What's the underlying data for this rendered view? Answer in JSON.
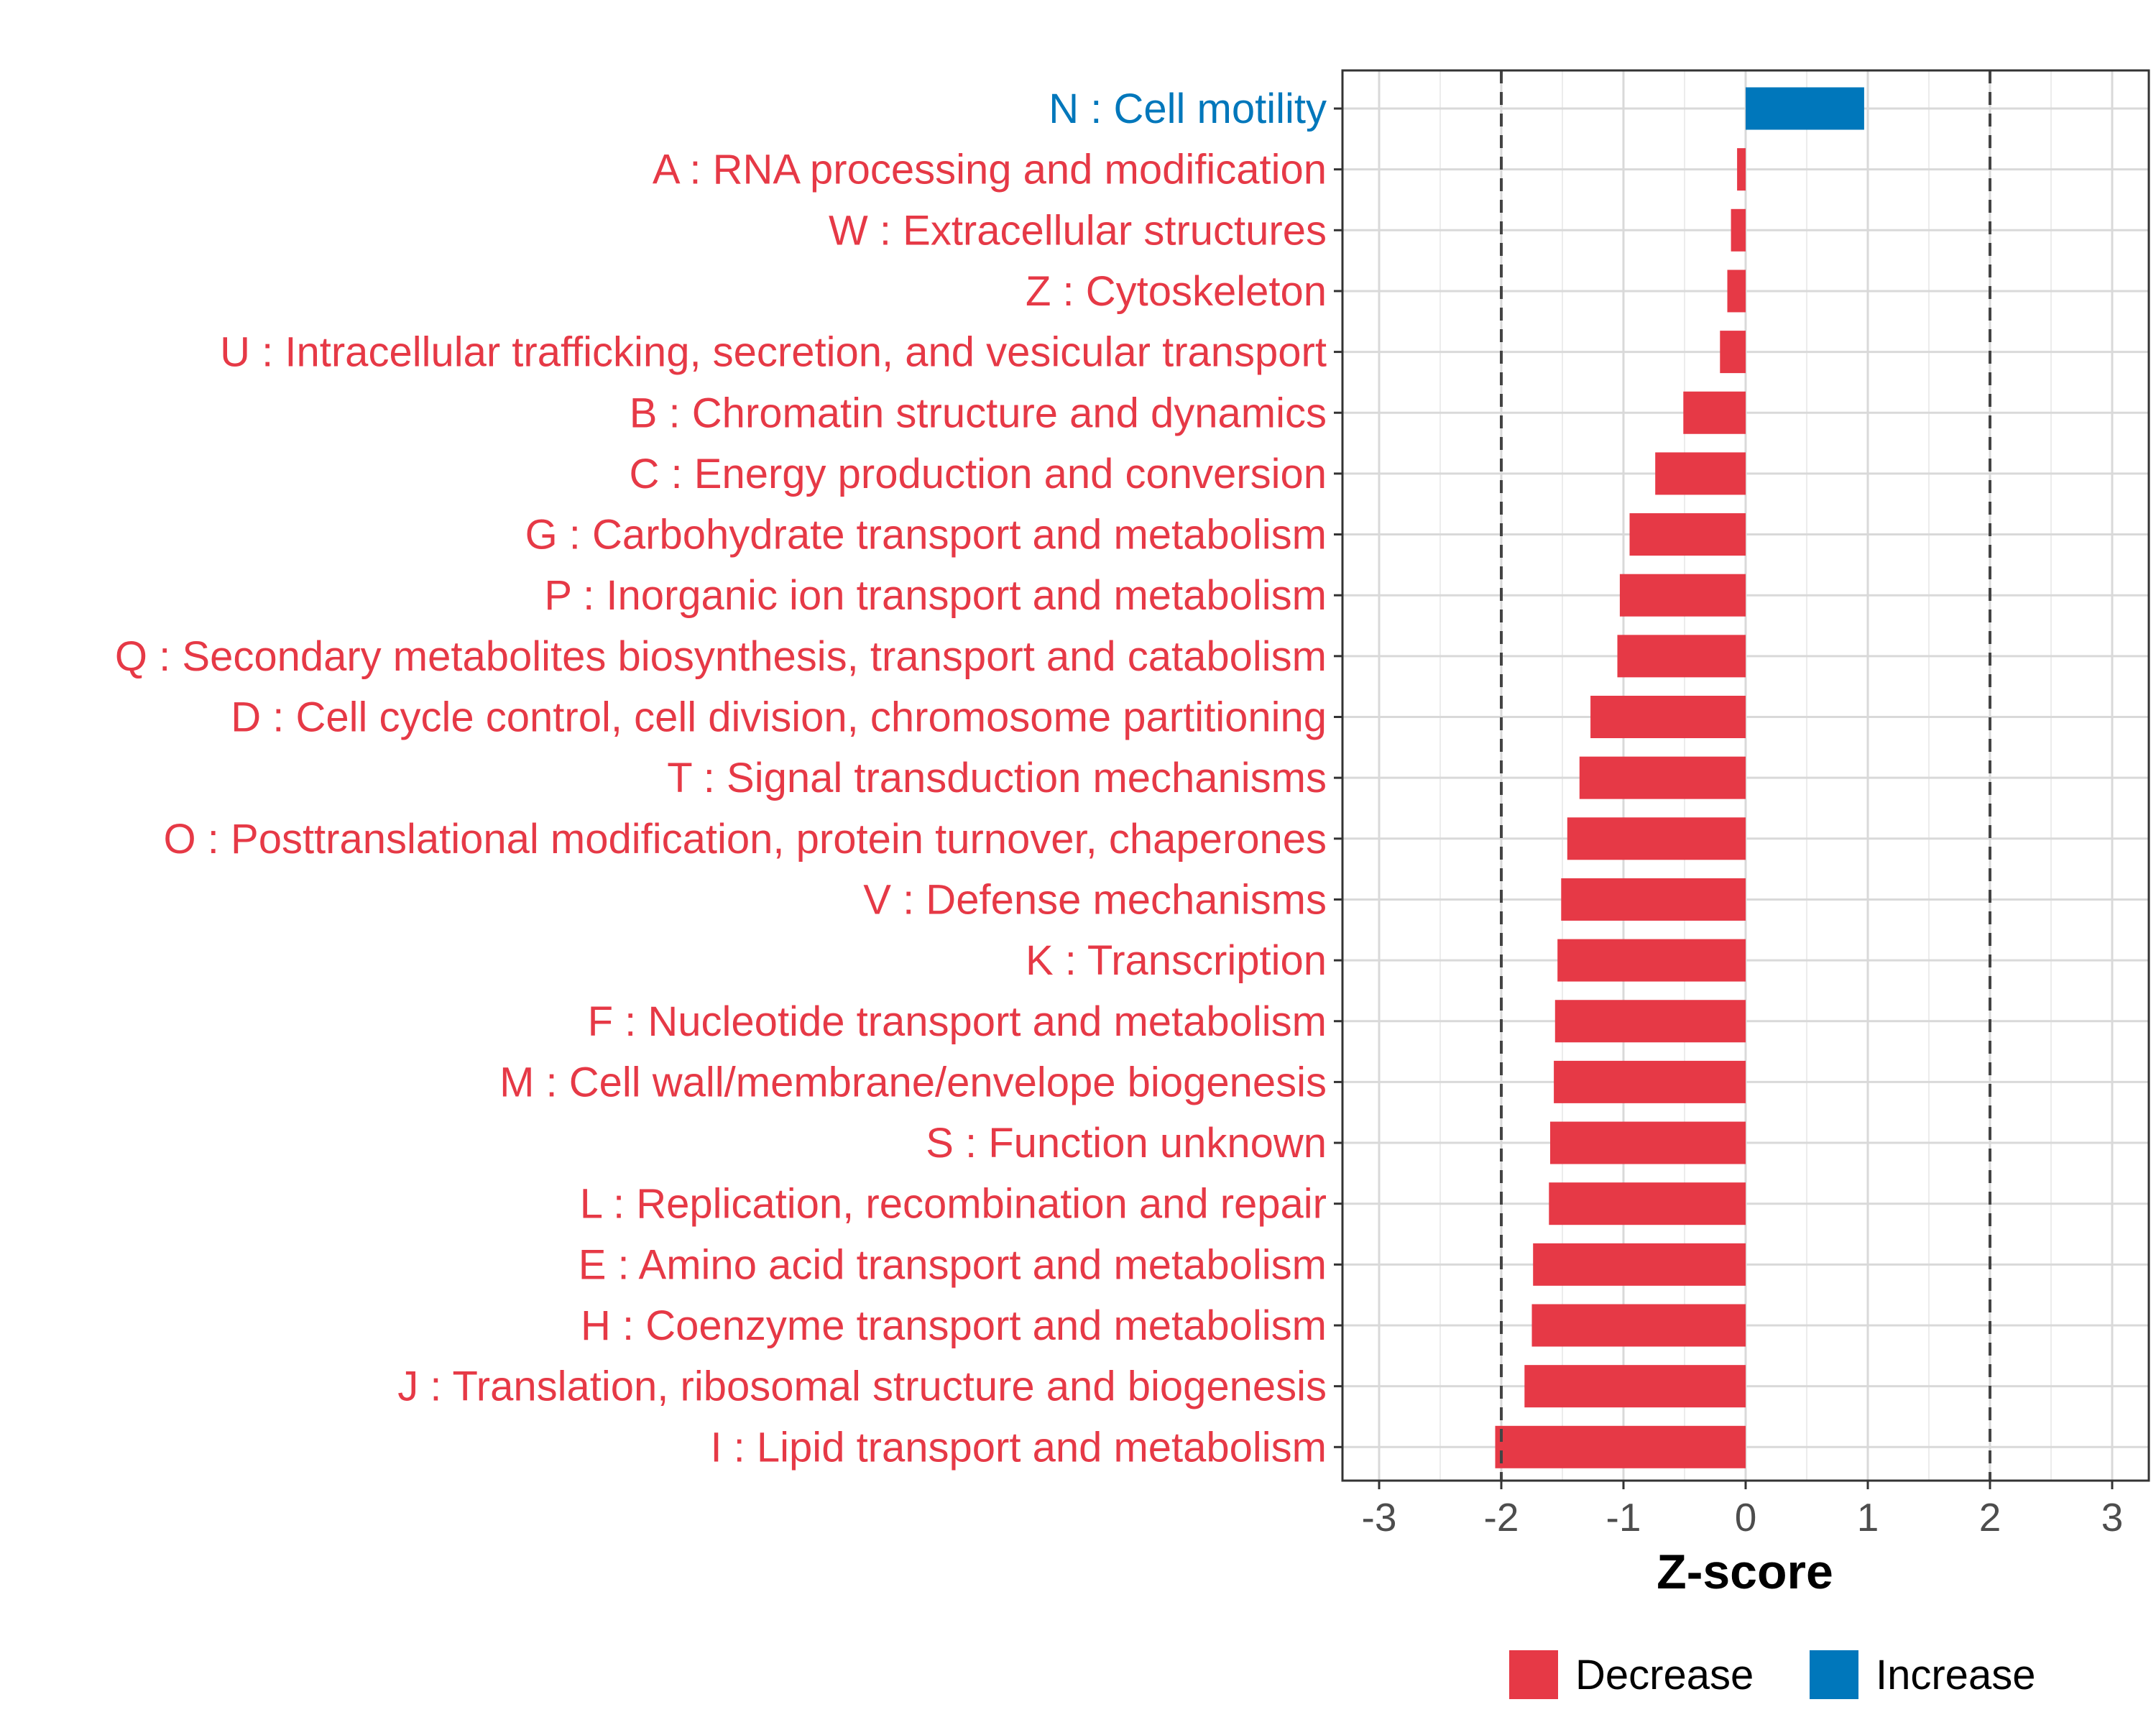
{
  "chart_data": {
    "type": "bar",
    "orientation": "horizontal",
    "title": "",
    "xlabel": "Z-score",
    "ylabel": "",
    "xlim": [
      -3.3,
      3.3
    ],
    "xticks": [
      -3,
      -2,
      -1,
      0,
      1,
      2,
      3
    ],
    "xtick_labels": [
      "-3",
      "-2",
      "-1",
      "0",
      "1",
      "2",
      "3"
    ],
    "reference_lines": [
      -2,
      2
    ],
    "grid": true,
    "colors": {
      "Decrease": "#e63946",
      "Increase": "#0077bb"
    },
    "categories": [
      "N : Cell motility",
      "A : RNA processing and modification",
      "W : Extracellular structures",
      "Z : Cytoskeleton",
      "U : Intracellular trafficking, secretion, and vesicular transport",
      "B : Chromatin structure and dynamics",
      "C : Energy production and conversion",
      "G : Carbohydrate transport and metabolism",
      "P : Inorganic ion transport and metabolism",
      "Q : Secondary metabolites biosynthesis, transport and catabolism",
      "D : Cell cycle control, cell division, chromosome partitioning",
      "T : Signal transduction mechanisms",
      "O : Posttranslational modification, protein turnover, chaperones",
      "V : Defense mechanisms",
      "K : Transcription",
      "F : Nucleotide transport and metabolism",
      "M : Cell wall/membrane/envelope biogenesis",
      "S : Function unknown",
      "L : Replication, recombination and repair",
      "E : Amino acid transport and metabolism",
      "H : Coenzyme transport and metabolism",
      "J : Translation, ribosomal structure and biogenesis",
      "I : Lipid transport and metabolism"
    ],
    "values": [
      0.97,
      -0.07,
      -0.12,
      -0.15,
      -0.21,
      -0.51,
      -0.74,
      -0.95,
      -1.03,
      -1.05,
      -1.27,
      -1.36,
      -1.46,
      -1.51,
      -1.54,
      -1.56,
      -1.57,
      -1.6,
      -1.61,
      -1.74,
      -1.75,
      -1.81,
      -2.05
    ],
    "groups": [
      "Increase",
      "Decrease",
      "Decrease",
      "Decrease",
      "Decrease",
      "Decrease",
      "Decrease",
      "Decrease",
      "Decrease",
      "Decrease",
      "Decrease",
      "Decrease",
      "Decrease",
      "Decrease",
      "Decrease",
      "Decrease",
      "Decrease",
      "Decrease",
      "Decrease",
      "Decrease",
      "Decrease",
      "Decrease",
      "Decrease"
    ],
    "legend": {
      "position": "bottom",
      "entries": [
        {
          "label": "Decrease",
          "color": "#e63946"
        },
        {
          "label": "Increase",
          "color": "#0077bb"
        }
      ]
    }
  }
}
